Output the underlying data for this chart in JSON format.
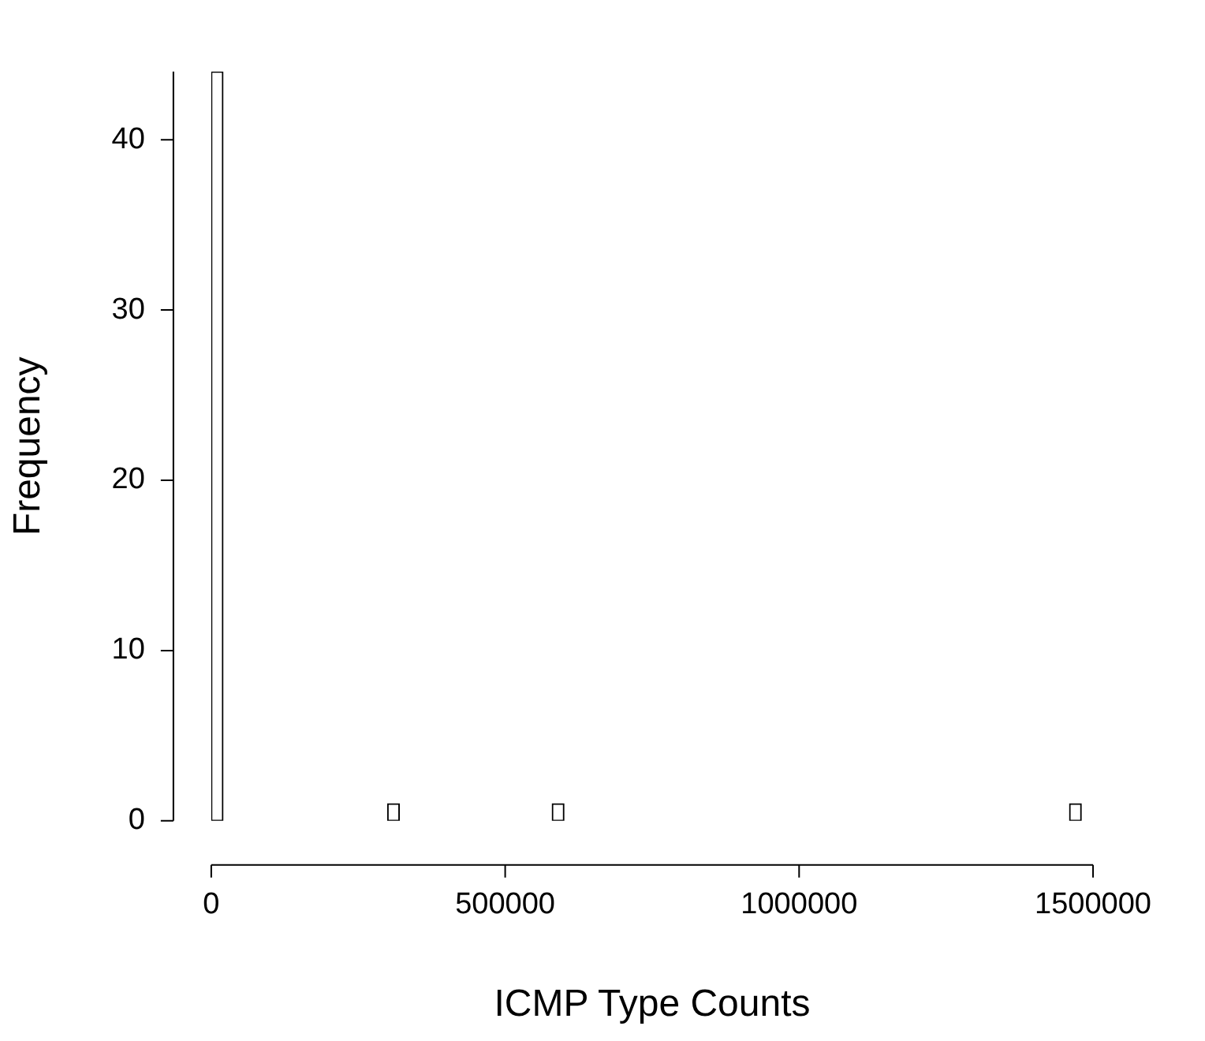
{
  "chart_data": {
    "type": "histogram",
    "xlabel": "ICMP Type Counts",
    "ylabel": "Frequency",
    "color": "#ffffff",
    "bins": [
      0,
      20000,
      40000,
      60000,
      80000,
      100000,
      120000,
      140000,
      160000,
      180000,
      200000,
      220000,
      240000,
      260000,
      280000,
      300000,
      320000,
      340000,
      360000,
      380000,
      400000,
      420000,
      440000,
      460000,
      480000,
      500000,
      520000,
      540000,
      560000,
      580000,
      600000,
      620000,
      640000,
      660000,
      680000,
      700000,
      720000,
      740000,
      760000,
      780000,
      800000,
      820000,
      840000,
      860000,
      880000,
      900000,
      920000,
      940000,
      960000,
      980000,
      1000000,
      1020000,
      1040000,
      1060000,
      1080000,
      1100000,
      1120000,
      1140000,
      1160000,
      1180000,
      1200000,
      1220000,
      1240000,
      1260000,
      1280000,
      1300000,
      1320000,
      1340000,
      1360000,
      1380000,
      1400000,
      1420000,
      1440000,
      1460000,
      1480000
    ],
    "values": [
      44,
      0,
      0,
      0,
      0,
      0,
      0,
      0,
      0,
      0,
      0,
      0,
      0,
      0,
      0,
      1,
      0,
      0,
      0,
      0,
      0,
      0,
      0,
      0,
      0,
      0,
      0,
      0,
      0,
      1,
      0,
      0,
      0,
      0,
      0,
      0,
      0,
      0,
      0,
      0,
      0,
      0,
      0,
      0,
      0,
      0,
      0,
      0,
      0,
      0,
      0,
      0,
      0,
      0,
      0,
      0,
      0,
      0,
      0,
      0,
      0,
      0,
      0,
      0,
      0,
      0,
      0,
      0,
      0,
      0,
      0,
      0,
      0,
      1
    ],
    "xlim": [
      0,
      1500000
    ],
    "xticks": [
      0,
      500000,
      1000000,
      1500000
    ],
    "ylim": [
      0,
      44
    ],
    "yticks": [
      0,
      10,
      20,
      30,
      40
    ]
  }
}
